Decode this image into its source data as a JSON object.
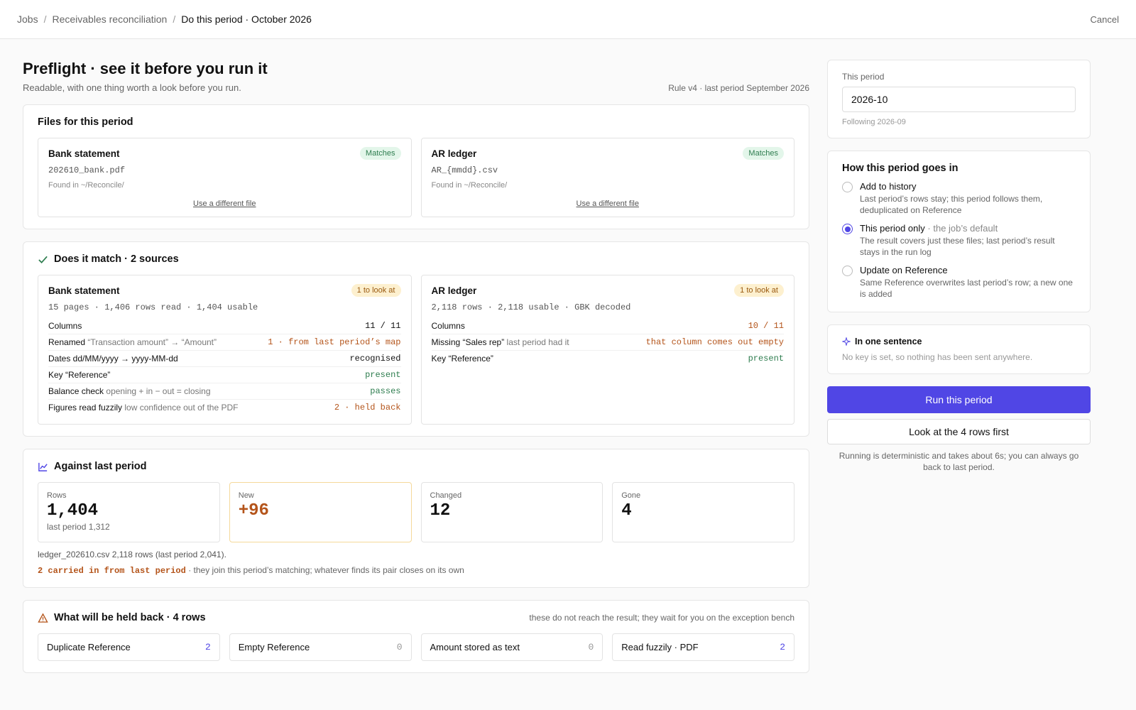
{
  "breadcrumb": {
    "items": [
      "Jobs",
      "Receivables reconciliation",
      "Do this period · October 2026"
    ],
    "cancel": "Cancel"
  },
  "header": {
    "title": "Preflight · see it before you run it",
    "subtitle": "Readable, with one thing worth a look before you run.",
    "meta": "Rule v4 · last period September 2026"
  },
  "files": {
    "title": "Files for this period",
    "cards": [
      {
        "name": "Bank statement",
        "badge": "Matches",
        "file": "202610_bank.pdf",
        "found": "Found in ~/Reconcile/",
        "action": "Use a different file"
      },
      {
        "name": "AR ledger",
        "badge": "Matches",
        "file": "AR_{mmdd}.csv",
        "found": "Found in ~/Reconcile/",
        "action": "Use a different file"
      }
    ]
  },
  "match": {
    "title": "Does it match · 2 sources",
    "cards": [
      {
        "name": "Bank statement",
        "badge": "1 to look at",
        "summary": "15 pages · 1,406 rows read · 1,404 usable",
        "rows": [
          {
            "label": "Columns",
            "value": "11 / 11",
            "color": "#111111"
          },
          {
            "label": "Renamed",
            "note": "“Transaction amount” → “Amount”",
            "value": "1 · from last period’s map",
            "color": "#b4541a"
          },
          {
            "label": "Dates dd/MM/yyyy → yyyy-MM-dd",
            "value": "recognised",
            "color": "#111111"
          },
          {
            "label": "Key “Reference”",
            "value": "present",
            "color": "#2e7d4f"
          },
          {
            "label": "Balance check",
            "note": "opening + in − out = closing",
            "value": "passes",
            "color": "#2e7d4f"
          },
          {
            "label": "Figures read fuzzily",
            "note": "low confidence out of the PDF",
            "value": "2 · held back",
            "color": "#b4541a"
          }
        ]
      },
      {
        "name": "AR ledger",
        "badge": "1 to look at",
        "summary": "2,118 rows · 2,118 usable · GBK decoded",
        "rows": [
          {
            "label": "Columns",
            "value": "10 / 11",
            "color": "#b4541a"
          },
          {
            "label": "Missing “Sales rep”",
            "note": "last period had it",
            "value": "that column comes out empty",
            "color": "#b4541a"
          },
          {
            "label": "Key “Reference”",
            "value": "present",
            "color": "#2e7d4f"
          }
        ]
      }
    ]
  },
  "against": {
    "title": "Against last period",
    "stats": [
      {
        "label": "Rows",
        "value": "1,404",
        "sub": "last period 1,312"
      },
      {
        "label": "New",
        "value": "+96",
        "highlight": true
      },
      {
        "label": "Changed",
        "value": "12"
      },
      {
        "label": "Gone",
        "value": "4"
      }
    ],
    "note": "ledger_202610.csv 2,118 rows (last period 2,041).",
    "carried": "2 carried in from last period",
    "carried_note": "· they join this period’s matching; whatever finds its pair closes on its own"
  },
  "held": {
    "title": "What will be held back · 4 rows",
    "note": "these do not reach the result; they wait for you on the exception bench",
    "items": [
      {
        "label": "Duplicate Reference",
        "count": 2
      },
      {
        "label": "Empty Reference",
        "count": 0
      },
      {
        "label": "Amount stored as text",
        "count": 0
      },
      {
        "label": "Read fuzzily · PDF",
        "count": 2
      }
    ]
  },
  "sidebar": {
    "period": {
      "label": "This period",
      "value": "2026-10",
      "hint": "Following 2026-09"
    },
    "mode": {
      "title": "How this period goes in",
      "options": [
        {
          "label": "Add to history",
          "desc": "Last period’s rows stay; this period follows them, deduplicated on Reference",
          "selected": false
        },
        {
          "label": "This period only",
          "note": "· the job’s default",
          "desc": "The result covers just these files; last period’s result stays in the run log",
          "selected": true
        },
        {
          "label": "Update on Reference",
          "desc": "Same Reference overwrites last period’s row; a new one is added",
          "selected": false
        }
      ]
    },
    "sentence": {
      "title": "In one sentence",
      "text": "No key is set, so nothing has been sent anywhere."
    },
    "run": "Run this period",
    "look": "Look at the 4 rows first",
    "footnote": "Running is deterministic and takes about 6s; you can always go back to last period."
  }
}
